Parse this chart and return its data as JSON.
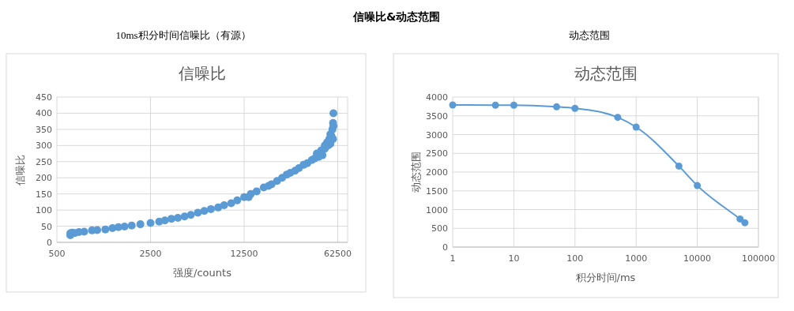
{
  "chart_data": [
    {
      "type": "scatter",
      "title": "信噪比",
      "subtitle": "10ms积分时间信噪比（有源）",
      "annotations": [
        "信噪比&动态范围"
      ],
      "xlabel": "强度/counts",
      "ylabel": "信噪比",
      "log": "x",
      "xlim": [
        500,
        74000
      ],
      "xticks": [
        500,
        2500,
        12500,
        62500
      ],
      "ylim": [
        0,
        450
      ],
      "yticks": [
        0,
        50,
        100,
        150,
        200,
        250,
        300,
        350,
        400,
        450
      ],
      "grid": true,
      "marker": "circle",
      "series": [
        {
          "color": "#5b9bd5",
          "x": [
            630,
            630,
            650,
            680,
            730,
            800,
            915,
            1000,
            1150,
            1300,
            1440,
            1600,
            1810,
            2100,
            2500,
            2900,
            3200,
            3580,
            4000,
            4490,
            5000,
            5640,
            6300,
            7060,
            8000,
            8860,
            10000,
            11100,
            12500,
            13500,
            14000,
            15500,
            17500,
            19000,
            20000,
            22000,
            24000,
            26000,
            27600,
            30000,
            32000,
            34700,
            37000,
            40000,
            42000,
            43600,
            45000,
            47000,
            48000,
            50000,
            50000,
            52000,
            53000,
            54000,
            55000,
            55000,
            56000,
            57000,
            57600,
            57600,
            58000,
            58000
          ],
          "values": [
            22,
            28,
            30,
            29,
            32,
            33,
            37,
            38,
            40,
            44,
            47,
            49,
            52,
            56,
            60,
            64,
            68,
            73,
            76,
            80,
            85,
            92,
            97,
            103,
            108,
            115,
            121,
            130,
            140,
            140,
            150,
            158,
            170,
            175,
            180,
            190,
            200,
            210,
            215,
            222,
            230,
            240,
            245,
            255,
            260,
            275,
            265,
            285,
            270,
            300,
            290,
            310,
            300,
            320,
            305,
            335,
            330,
            350,
            320,
            370,
            360,
            400
          ]
        }
      ]
    },
    {
      "type": "line",
      "title": "动态范围",
      "subtitle": "动态范围",
      "xlabel": "积分时间/ms",
      "ylabel": "动态范围",
      "log": "x",
      "xlim": [
        1,
        100000
      ],
      "xticks": [
        1,
        10,
        100,
        1000,
        10000,
        100000
      ],
      "ylim": [
        0,
        4000
      ],
      "yticks": [
        0,
        500,
        1000,
        1500,
        2000,
        2500,
        3000,
        3500,
        4000
      ],
      "grid": true,
      "marker": "circle",
      "line_style": "solid",
      "series": [
        {
          "color": "#5b9bd5",
          "x": [
            1,
            5,
            10,
            50,
            100,
            500,
            1000,
            5000,
            10000,
            50000,
            60000
          ],
          "values": [
            3790,
            3785,
            3785,
            3740,
            3700,
            3460,
            3200,
            2160,
            1640,
            750,
            650
          ]
        }
      ]
    }
  ]
}
